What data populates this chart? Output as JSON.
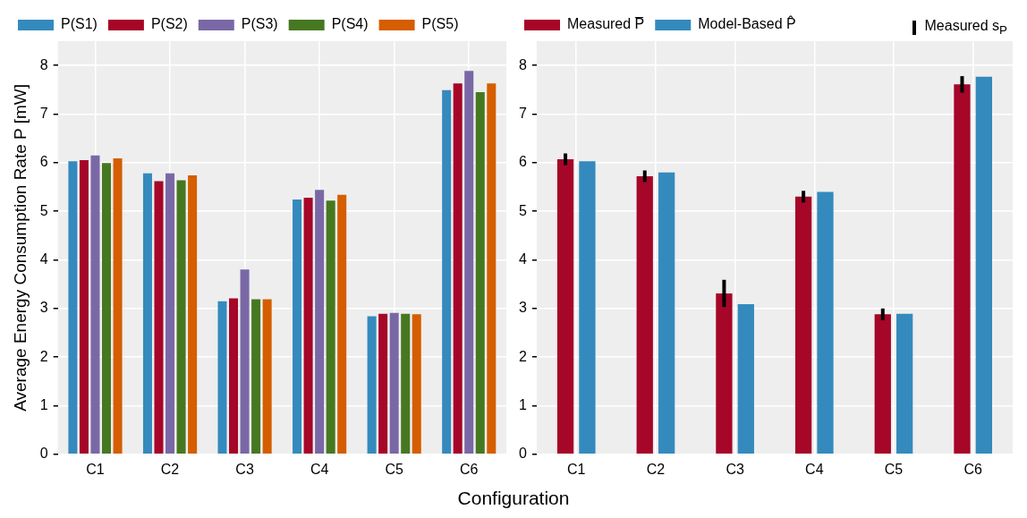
{
  "chart_data": [
    {
      "type": "bar",
      "ylabel": "Average Energy Consumption Rate P [mW]",
      "xlabel": "Configuration",
      "categories": [
        "C1",
        "C2",
        "C3",
        "C4",
        "C5",
        "C6"
      ],
      "ylim": [
        0,
        8.5
      ],
      "yticks": [
        0,
        1,
        2,
        3,
        4,
        5,
        6,
        7,
        8
      ],
      "grid": true,
      "legend": "top",
      "series": [
        {
          "name": "P(S1)",
          "color": "#348abd",
          "values": [
            6.03,
            5.78,
            3.15,
            5.24,
            2.84,
            7.49
          ]
        },
        {
          "name": "P(S2)",
          "color": "#a60628",
          "values": [
            6.05,
            5.62,
            3.21,
            5.28,
            2.89,
            7.63
          ]
        },
        {
          "name": "P(S3)",
          "color": "#7a68a6",
          "values": [
            6.15,
            5.78,
            3.8,
            5.44,
            2.91,
            7.89
          ]
        },
        {
          "name": "P(S4)",
          "color": "#467821",
          "values": [
            5.99,
            5.64,
            3.19,
            5.22,
            2.89,
            7.45
          ]
        },
        {
          "name": "P(S5)",
          "color": "#d55e00",
          "values": [
            6.09,
            5.74,
            3.19,
            5.34,
            2.88,
            7.63
          ]
        }
      ]
    },
    {
      "type": "bar",
      "categories": [
        "C1",
        "C2",
        "C3",
        "C4",
        "C5",
        "C6"
      ],
      "ylim": [
        0,
        8.5
      ],
      "yticks": [
        0,
        1,
        2,
        3,
        4,
        5,
        6,
        7,
        8
      ],
      "grid": true,
      "legend": "top",
      "annotations": [
        "Measured s$_{P}$"
      ],
      "series": [
        {
          "name": "Measured P̅",
          "color": "#a60628",
          "values": [
            6.07,
            5.72,
            3.31,
            5.3,
            2.88,
            7.61
          ],
          "errors": [
            0.12,
            0.12,
            0.28,
            0.12,
            0.12,
            0.17
          ]
        },
        {
          "name": "Model-Based P̂",
          "color": "#348abd",
          "values": [
            6.03,
            5.8,
            3.09,
            5.4,
            2.89,
            7.77
          ]
        }
      ]
    }
  ]
}
